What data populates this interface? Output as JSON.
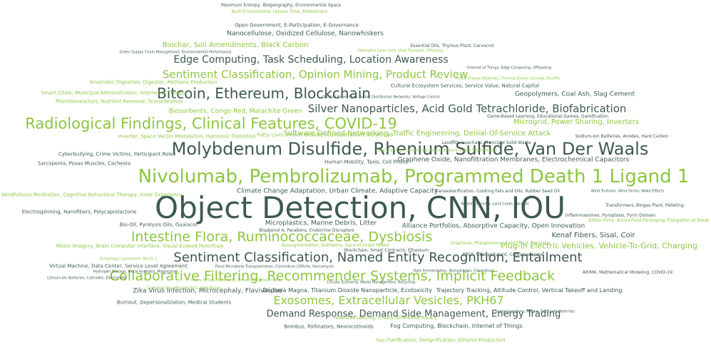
{
  "colors": {
    "dark": "#3d5a4f",
    "green": "#8cc63f",
    "black": "#2b3a33"
  },
  "words": [
    {
      "text": "Object Detection, CNN, IOU",
      "tone": "dark"
    },
    {
      "text": "Nivolumab, Pembrolizumab, Programmed Death 1 Ligand 1",
      "tone": "green"
    },
    {
      "text": "Molybdenum Disulfide, Rhenium Sulfide, Van Der Waals",
      "tone": "dark"
    },
    {
      "text": "Radiological Findings, Clinical Features, COVID-19",
      "tone": "green"
    },
    {
      "text": "Intestine Flora, Ruminococcaceae, Dysbiosis",
      "tone": "green"
    },
    {
      "text": "Collaborative Filtering, Recommender Systems, Implicit Feedback",
      "tone": "green"
    },
    {
      "text": "Sentiment Classification, Named Entity Recognition, Entailment",
      "tone": "dark"
    },
    {
      "text": "Bitcoin, Ethereum, Blockchain",
      "tone": "dark"
    },
    {
      "text": "Exosomes, Extracellular Vesicles, PKH67",
      "tone": "green"
    },
    {
      "text": "Sentiment Classification, Opinion Mining, Product Review",
      "tone": "green"
    },
    {
      "text": "Silver Nanoparticles, Acid Gold Tetrachloride, Biofabrication",
      "tone": "dark"
    },
    {
      "text": "Edge Computing, Task Scheduling, Location Awareness",
      "tone": "dark"
    },
    {
      "text": "Demand Response, Demand Side Management, Energy Trading",
      "tone": "dark"
    },
    {
      "text": "Nanocellulose, Oxidized Cellulose, Nanowhiskers",
      "tone": "dark"
    },
    {
      "text": "Biochar, Soil Amendments, Black Carbon",
      "tone": "green"
    },
    {
      "text": "Fog Computing, Blockchain, Internet of Things",
      "tone": "dark"
    },
    {
      "text": "Kenaf Fibers, Sisal, Coir",
      "tone": "dark"
    },
    {
      "text": "Plug-in Electric Vehicles, Vehicle-To-Grid, Charging",
      "tone": "green"
    },
    {
      "text": "Microgrid, Power Sharing, Inverters",
      "tone": "green"
    },
    {
      "text": "Software Defined Networking, Traffic Engineering, Denial-Of-Service Attack",
      "tone": "green"
    },
    {
      "text": "Graphene Oxide, Nanofiltration Membranes, Electrochemical Capacitors",
      "tone": "dark"
    },
    {
      "text": "Geopolymers, Coal Ash, Slag Cement",
      "tone": "dark"
    },
    {
      "text": "Biosorbents, Congo Red, Malachite Green",
      "tone": "green"
    },
    {
      "text": "Climate Change Adaptation, Urban Climate, Adaptive Capacity",
      "tone": "dark"
    },
    {
      "text": "Microplastics, Marine Debris, Litter",
      "tone": "dark"
    },
    {
      "text": "Alliance Portfolios, Absorptive Capacity, Open Innovation",
      "tone": "dark"
    },
    {
      "text": "Zika Virus Infection, Microcephaly, Flaviviridae",
      "tone": "dark"
    },
    {
      "text": "Daphnia Magna, Titanium Dioxide Nanoparticle, Ecotoxicity",
      "tone": "dark"
    },
    {
      "text": "Trajectory Tracking, Altitude Control, Vertical Takeoff and Landing",
      "tone": "dark"
    },
    {
      "text": "Bombus, Pollinators, Neonicotinoids",
      "tone": "dark"
    },
    {
      "text": "Saccharification, Delignification, Ethanol Production",
      "tone": "green"
    },
    {
      "text": "Cultural Ecosystem Services, Service Value, Natural Capital",
      "tone": "dark"
    },
    {
      "text": "Fatty Liver, Proton Density (Concentration), Keratin-18",
      "tone": "green"
    },
    {
      "text": "Cyberbullying, Crime Victims, Participant Roles",
      "tone": "dark"
    },
    {
      "text": "Human Mobility, Taxis, Cell Phone",
      "tone": "dark"
    },
    {
      "text": "Motor Imagery, Brain Computer Interface, Visual Evoked Potentials",
      "tone": "green"
    },
    {
      "text": "Virtual Machine, Data Center, Service Level Agreement",
      "tone": "dark"
    },
    {
      "text": "Burnout, Depersonalization, Medical Students",
      "tone": "dark"
    },
    {
      "text": "Bio-Oil, Pyrolysis Oils, Guaiacol",
      "tone": "dark"
    },
    {
      "text": "Anaerobic Digestion, Digester, Methane Production",
      "tone": "green"
    },
    {
      "text": "Smart Cities, Municipal Administration, Internet of Things",
      "tone": "green"
    },
    {
      "text": "Photobioreactors, Nutrient Removal, Scenedesmus",
      "tone": "green"
    },
    {
      "text": "Inverter, Space Vector Modulation, Harmonic Distortion",
      "tone": "green"
    },
    {
      "text": "Sarcopenia, Psoas Muscles, Cachexia",
      "tone": "dark"
    },
    {
      "text": "Windfulness Meditation, Cognitive Behavioral Therapy, Inner Experience",
      "tone": "green"
    },
    {
      "text": "Electrospinning, Nanofibers, Polycaprolactone",
      "tone": "dark"
    },
    {
      "text": "Open Government, E-Participation, E-Governance",
      "tone": "dark"
    },
    {
      "text": "Maximum Entropy, Biogeography, Environmental Space",
      "tone": "dark"
    },
    {
      "text": "Built Environment, Leisure Time, Pedestrians",
      "tone": "green"
    },
    {
      "text": "Essential Oils, Thymus Plant, Carvacrol",
      "tone": "dark"
    },
    {
      "text": "Game-Based Learning, Educational Games, Gamification",
      "tone": "dark"
    },
    {
      "text": "Transesterification, Cooking Fats and Oils, Rubber Seed Oil",
      "tone": "dark"
    },
    {
      "text": "PPCP, Micropollutant, Carbamazepine",
      "tone": "dark"
    },
    {
      "text": "Transformers, Biogas Plant, Pelleting",
      "tone": "dark"
    },
    {
      "text": "Inflammasomes, Pyroptosis, Pyrin Domain",
      "tone": "dark"
    },
    {
      "text": "Edible Films, Active Food Packaging, Elongation at Break",
      "tone": "green"
    },
    {
      "text": "ARIMA, Mathematical Modeling, COVID-19",
      "tone": "dark"
    },
    {
      "text": "Bioaugmentation, Isotherms, Second-Order Model",
      "tone": "green"
    },
    {
      "text": "Bisphenol A, Parabens, Endocrine Disruptors",
      "tone": "dark"
    },
    {
      "text": "Landfills, Leachate, Municipal Solid Waste",
      "tone": "dark"
    },
    {
      "text": "Graphene, Phosphorene, Field Effect Transistor",
      "tone": "green"
    },
    {
      "text": "Blockchain, Smart Contracts, Ethereum",
      "tone": "dark"
    },
    {
      "text": "Fecal Microbiota Transplantation, Clostridium Difficile, Vancomycin",
      "tone": "dark"
    },
    {
      "text": "Autophagy, Lysosomes, Beclin 1",
      "tone": "green"
    },
    {
      "text": "Heavy Metals, Sediments, Geoaccumulation Index",
      "tone": "green"
    },
    {
      "text": "Lithium-Ion Batteries, Cathodes, Electrolytes",
      "tone": "dark"
    },
    {
      "text": "Hydrogen Storage, Metal Hydrides, Magnesium",
      "tone": "dark"
    },
    {
      "text": "Cyanobacteria, Microcystins, Algal Bloom",
      "tone": "green"
    },
    {
      "text": "Dark Fermentation, Biohydrogen, Clostridium",
      "tone": "dark"
    },
    {
      "text": "Wind Turbines, Wind Farms, Wake Effects",
      "tone": "dark"
    },
    {
      "text": "Green Supply Chain Management, Environmental Performance",
      "tone": "dark"
    },
    {
      "text": "Deep Learning, Convolutional Neural Network, Image Segmentation",
      "tone": "green"
    },
    {
      "text": "Internet of Things, Edge Computing, Offloading",
      "tone": "dark"
    },
    {
      "text": "Phase Change Materials, Thermal Energy Storage, Paraffin",
      "tone": "green"
    },
    {
      "text": "Perovskite Solar Cells, Hole Transport, Efficiency",
      "tone": "green"
    },
    {
      "text": "Sodium-Ion Batteries, Anodes, Hard Carbon",
      "tone": "dark"
    },
    {
      "text": "Circular Economy, Waste Management, Recycling",
      "tone": "dark"
    },
    {
      "text": "Remote Sensing, Land Cover, Landsat",
      "tone": "dark"
    },
    {
      "text": "Optimal Power Flow, Active Distribution Networks, Voltage Control",
      "tone": "dark"
    },
    {
      "text": "Federated Learning, Privacy, Differential Privacy",
      "tone": "green"
    },
    {
      "text": "Supercapacitors, MXene, Electrode Materials",
      "tone": "dark"
    }
  ]
}
